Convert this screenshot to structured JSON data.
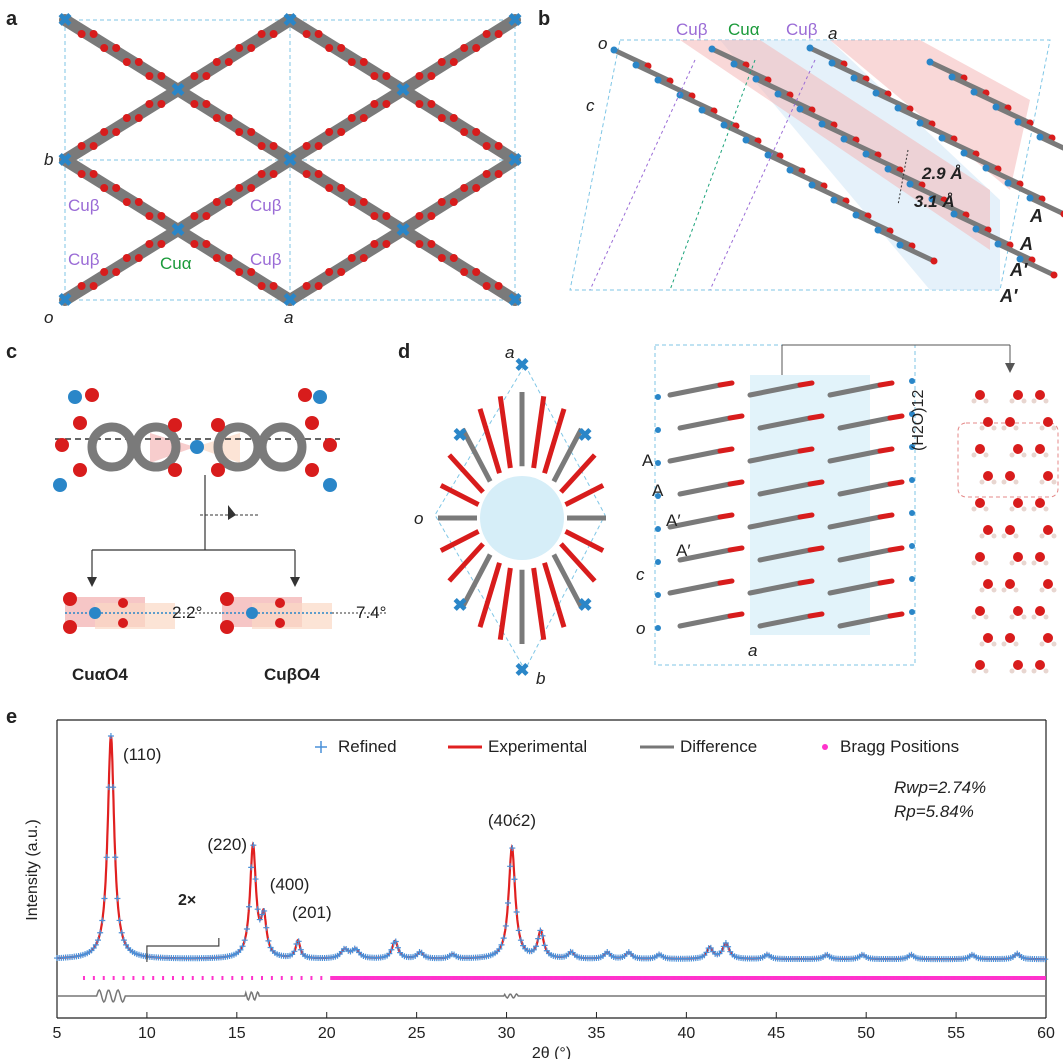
{
  "panels": {
    "a": {
      "label": "a",
      "axis_labels": {
        "b": "b",
        "o": "o",
        "a": "a"
      },
      "cu_labels": {
        "cu_beta": "Cuβ",
        "cu_alpha": "Cuα"
      }
    },
    "b": {
      "label": "b",
      "axis_labels": {
        "o": "o",
        "c": "c",
        "a": "a"
      },
      "top_labels": [
        "Cuβ",
        "Cuα",
        "Cuβ"
      ],
      "distances": [
        "2.9 Å",
        "3.1 Å"
      ],
      "stack_labels": [
        "A",
        "A",
        "A′",
        "A′"
      ]
    },
    "c": {
      "label": "c",
      "angles": [
        "2.2°",
        "7.4°"
      ],
      "species": [
        "CuαO4",
        "CuβO4"
      ]
    },
    "d": {
      "label": "d",
      "axis_labels": {
        "a": "a",
        "o": "o",
        "b": "b",
        "c": "c",
        "o2": "o",
        "a2": "a"
      },
      "stack_labels": [
        "A",
        "A",
        "A′",
        "A′"
      ],
      "water_label": "(H2O)12"
    },
    "e": {
      "label": "e",
      "legend": [
        "Refined",
        "Experimental",
        "Difference",
        "Bragg Positions"
      ],
      "rwp": "Rwp=2.74%",
      "rp": "Rp=5.84%",
      "magnify": "2×"
    }
  },
  "colors": {
    "refined": "#4a90d9",
    "experimental": "#e02020",
    "difference": "#777777",
    "bragg": "#ff33cc",
    "copper": "#2a86c8",
    "oxygen": "#d81c1c",
    "carbon": "#7a7a7a"
  },
  "chart_data": {
    "type": "line",
    "xlabel": "2θ (°)",
    "ylabel": "Intensity (a.u.)",
    "xlim": [
      5,
      60
    ],
    "xticks": [
      5,
      10,
      15,
      20,
      25,
      30,
      35,
      40,
      45,
      50,
      55,
      60
    ],
    "peak_labels": [
      {
        "text": "(110)",
        "x": 8.0
      },
      {
        "text": "(220)",
        "x": 15.9
      },
      {
        "text": "(400)",
        "x": 16.5
      },
      {
        "text": "(201)",
        "x": 18.4
      },
      {
        "text": "(40ć2)",
        "x": 30.3
      }
    ],
    "peaks": [
      {
        "x": 8.0,
        "h": 1.0,
        "w": 0.22
      },
      {
        "x": 15.9,
        "h": 0.5,
        "w": 0.2
      },
      {
        "x": 16.5,
        "h": 0.17,
        "w": 0.18
      },
      {
        "x": 18.4,
        "h": 0.08,
        "w": 0.15
      },
      {
        "x": 21.0,
        "h": 0.04,
        "w": 0.25
      },
      {
        "x": 21.6,
        "h": 0.04,
        "w": 0.25
      },
      {
        "x": 23.8,
        "h": 0.08,
        "w": 0.2
      },
      {
        "x": 25.2,
        "h": 0.03,
        "w": 0.2
      },
      {
        "x": 27.0,
        "h": 0.02,
        "w": 0.2
      },
      {
        "x": 30.3,
        "h": 0.5,
        "w": 0.22
      },
      {
        "x": 31.9,
        "h": 0.12,
        "w": 0.2
      },
      {
        "x": 33.6,
        "h": 0.03,
        "w": 0.2
      },
      {
        "x": 35.6,
        "h": 0.03,
        "w": 0.2
      },
      {
        "x": 36.8,
        "h": 0.03,
        "w": 0.2
      },
      {
        "x": 38.5,
        "h": 0.02,
        "w": 0.2
      },
      {
        "x": 41.3,
        "h": 0.05,
        "w": 0.2
      },
      {
        "x": 42.2,
        "h": 0.07,
        "w": 0.22
      },
      {
        "x": 44.5,
        "h": 0.02,
        "w": 0.2
      },
      {
        "x": 47.8,
        "h": 0.02,
        "w": 0.2
      },
      {
        "x": 49.8,
        "h": 0.02,
        "w": 0.2
      },
      {
        "x": 52.5,
        "h": 0.02,
        "w": 0.2
      },
      {
        "x": 55.9,
        "h": 0.02,
        "w": 0.2
      },
      {
        "x": 58.4,
        "h": 0.025,
        "w": 0.2
      }
    ]
  }
}
